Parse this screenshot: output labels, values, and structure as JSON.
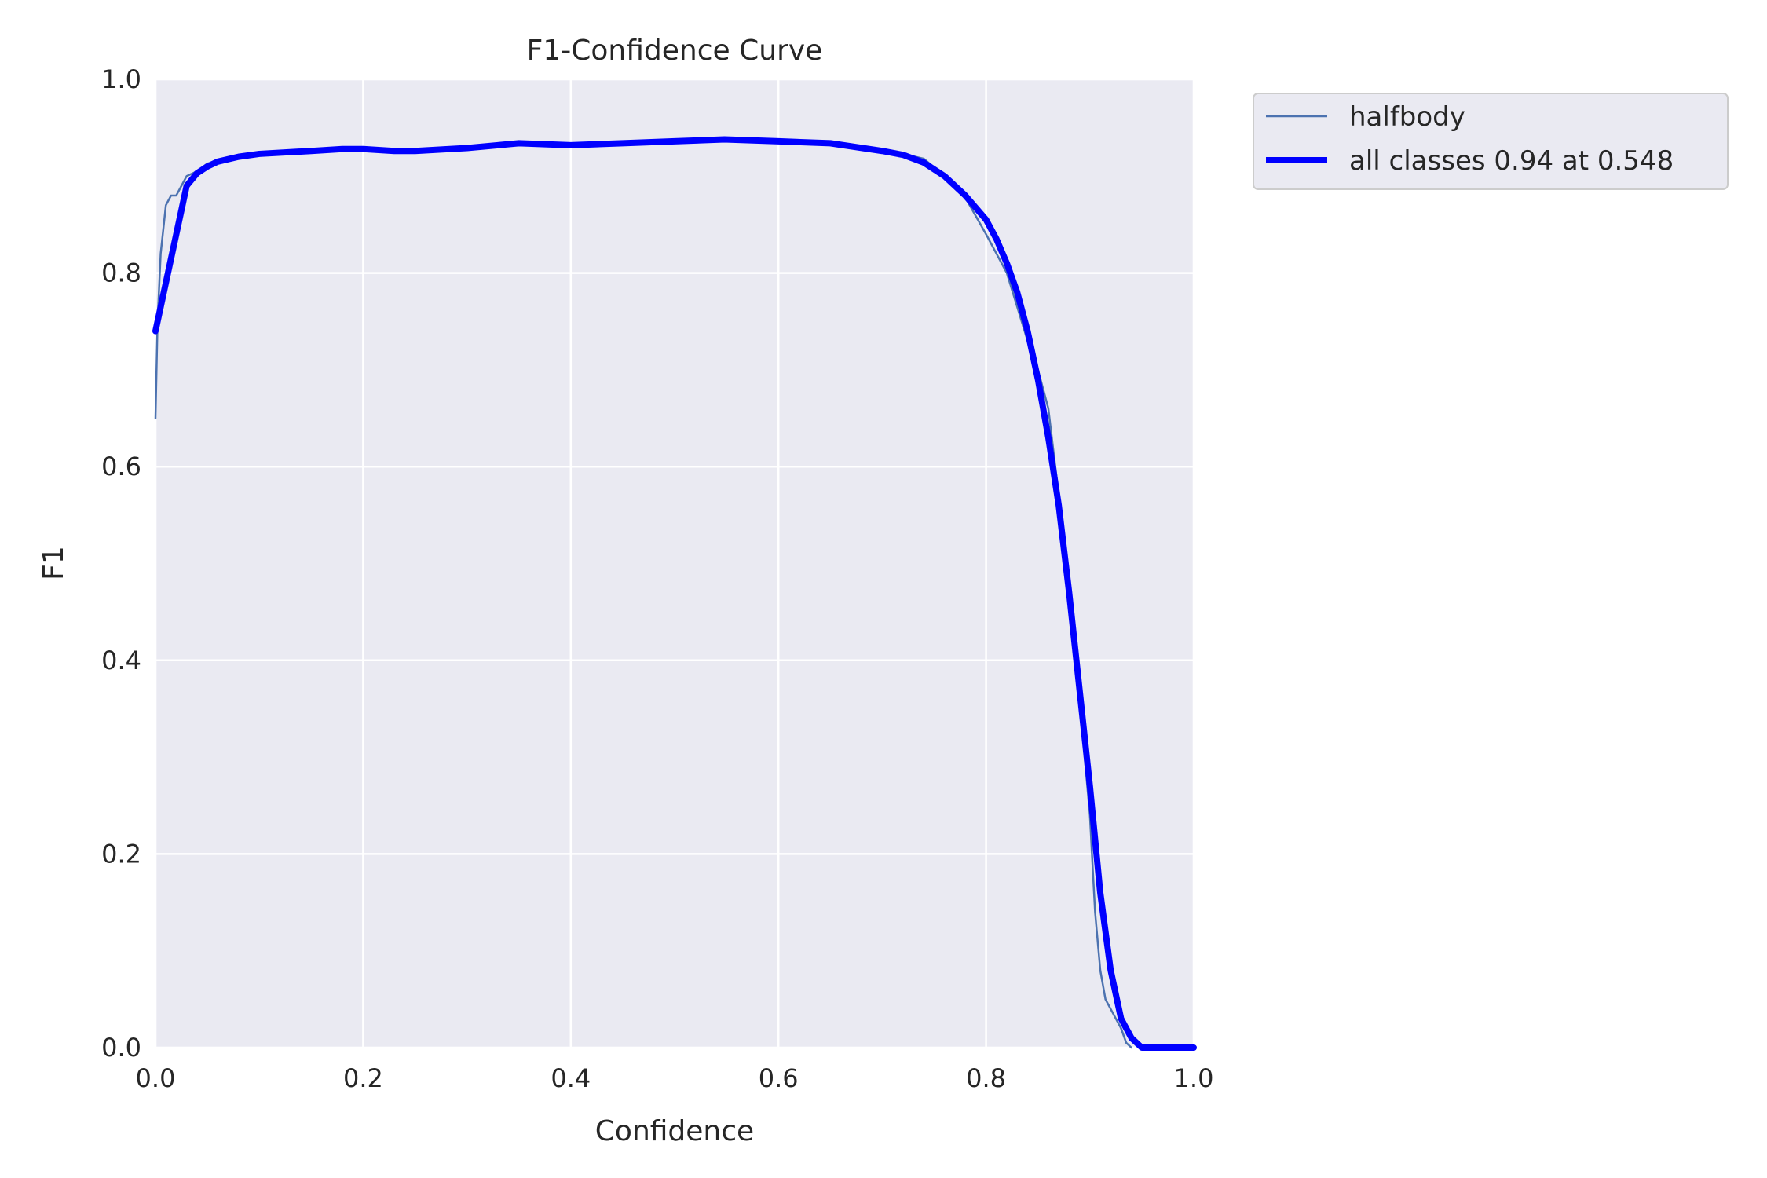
{
  "chart_data": {
    "type": "line",
    "title": "F1-Confidence Curve",
    "xlabel": "Confidence",
    "ylabel": "F1",
    "xlim": [
      0,
      1
    ],
    "ylim": [
      0,
      1
    ],
    "xticks": [
      "0.0",
      "0.2",
      "0.4",
      "0.6",
      "0.8",
      "1.0"
    ],
    "yticks": [
      "0.0",
      "0.2",
      "0.4",
      "0.6",
      "0.8",
      "1.0"
    ],
    "grid": true,
    "legend_position": "outside top-right",
    "background_color": "#eaeaf2",
    "series": [
      {
        "name": "halfbody",
        "color": "#4c72b0",
        "x": [
          0.0,
          0.002,
          0.005,
          0.01,
          0.015,
          0.02,
          0.025,
          0.03,
          0.04,
          0.05,
          0.06,
          0.08,
          0.1,
          0.15,
          0.2,
          0.25,
          0.3,
          0.35,
          0.4,
          0.45,
          0.5,
          0.55,
          0.6,
          0.65,
          0.7,
          0.72,
          0.74,
          0.76,
          0.78,
          0.8,
          0.82,
          0.84,
          0.85,
          0.86,
          0.87,
          0.88,
          0.89,
          0.9,
          0.905,
          0.91,
          0.915,
          0.92,
          0.93,
          0.935,
          0.94
        ],
        "y": [
          0.65,
          0.75,
          0.82,
          0.87,
          0.88,
          0.88,
          0.89,
          0.9,
          0.905,
          0.913,
          0.915,
          0.92,
          0.923,
          0.926,
          0.928,
          0.926,
          0.93,
          0.934,
          0.932,
          0.934,
          0.935,
          0.938,
          0.936,
          0.934,
          0.926,
          0.923,
          0.918,
          0.9,
          0.878,
          0.84,
          0.8,
          0.73,
          0.7,
          0.66,
          0.57,
          0.48,
          0.36,
          0.24,
          0.14,
          0.08,
          0.05,
          0.04,
          0.02,
          0.005,
          0.0
        ]
      },
      {
        "name": "all classes 0.94 at 0.548",
        "color": "#0000ff",
        "x": [
          0.0,
          0.01,
          0.02,
          0.03,
          0.04,
          0.05,
          0.06,
          0.08,
          0.1,
          0.15,
          0.18,
          0.2,
          0.23,
          0.25,
          0.3,
          0.33,
          0.35,
          0.4,
          0.45,
          0.5,
          0.548,
          0.6,
          0.65,
          0.7,
          0.72,
          0.74,
          0.76,
          0.78,
          0.8,
          0.81,
          0.82,
          0.83,
          0.84,
          0.85,
          0.86,
          0.87,
          0.88,
          0.89,
          0.9,
          0.91,
          0.92,
          0.93,
          0.94,
          0.95,
          0.96,
          1.0
        ],
        "y": [
          0.74,
          0.79,
          0.84,
          0.89,
          0.903,
          0.91,
          0.915,
          0.92,
          0.923,
          0.926,
          0.928,
          0.928,
          0.926,
          0.926,
          0.929,
          0.932,
          0.934,
          0.932,
          0.934,
          0.936,
          0.938,
          0.936,
          0.934,
          0.926,
          0.922,
          0.914,
          0.9,
          0.88,
          0.855,
          0.835,
          0.81,
          0.78,
          0.74,
          0.69,
          0.63,
          0.56,
          0.47,
          0.37,
          0.27,
          0.16,
          0.08,
          0.03,
          0.01,
          0.0,
          0.0,
          0.0
        ]
      }
    ]
  }
}
